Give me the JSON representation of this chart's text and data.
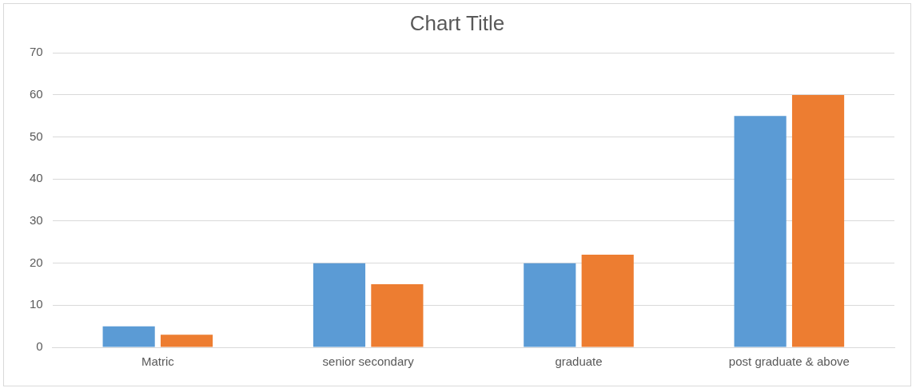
{
  "chart_data": {
    "type": "bar",
    "title": "Chart Title",
    "categories": [
      "Matric",
      "senior secondary",
      "graduate",
      "post graduate & above"
    ],
    "series": [
      {
        "color": "#5b9bd5",
        "values": [
          5,
          20,
          20,
          55
        ]
      },
      {
        "color": "#ed7d31",
        "values": [
          3,
          15,
          22,
          60
        ]
      }
    ],
    "ylim": [
      0,
      70
    ],
    "yticks": [
      0,
      10,
      20,
      30,
      40,
      50,
      60,
      70
    ],
    "grid": "y",
    "legend": false
  }
}
